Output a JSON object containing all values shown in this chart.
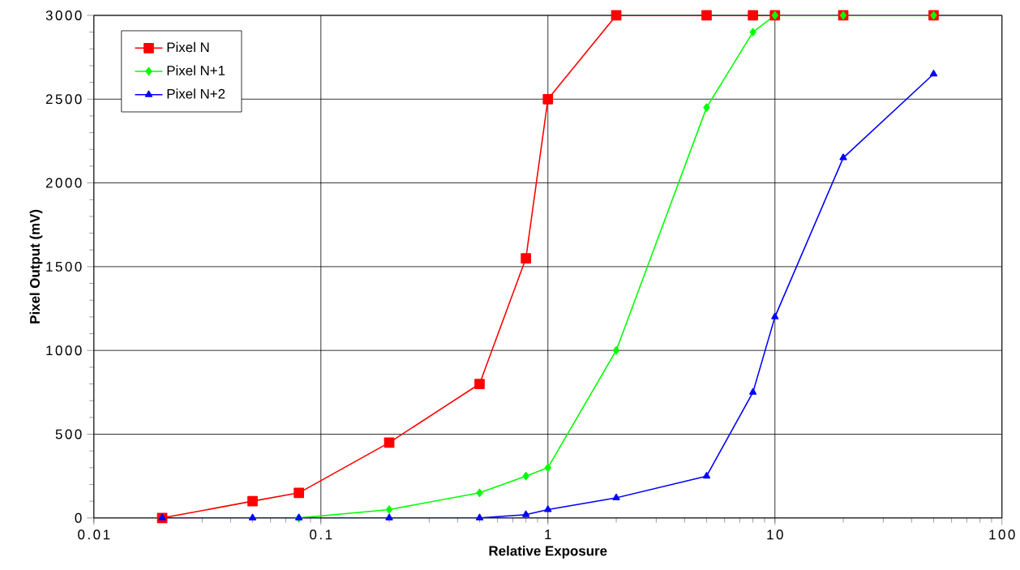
{
  "chart_data": {
    "type": "line",
    "xlabel": "Relative Exposure",
    "ylabel": "Pixel Output (mV)",
    "log": "x",
    "grid": true,
    "legend": "top left",
    "line_style": "solid",
    "xlim": [
      0.01,
      100
    ],
    "xticks": [
      0.01,
      0.1,
      1,
      10,
      100
    ],
    "ylim": [
      0,
      3000
    ],
    "yticks": [
      0,
      500,
      1000,
      1500,
      2000,
      2500,
      3000
    ],
    "series": [
      {
        "name": "Pixel N",
        "color": "#ff0000",
        "marker": "square",
        "x": [
          0.02,
          0.05,
          0.08,
          0.2,
          0.5,
          0.8,
          1,
          2,
          5,
          8,
          10,
          20,
          50
        ],
        "values": [
          0,
          100,
          150,
          450,
          800,
          1550,
          2500,
          3000,
          3000,
          3000,
          3000,
          3000,
          3000
        ]
      },
      {
        "name": "Pixel N+1",
        "color": "#00ff00",
        "marker": "diamond",
        "x": [
          0.08,
          0.2,
          0.5,
          0.8,
          1,
          2,
          5,
          8,
          10,
          20,
          50
        ],
        "values": [
          0,
          50,
          150,
          250,
          300,
          1000,
          2450,
          2900,
          3000,
          3000,
          3000
        ]
      },
      {
        "name": "Pixel N+2",
        "color": "#0000ff",
        "marker": "triangle",
        "x": [
          0.02,
          0.05,
          0.08,
          0.2,
          0.5,
          0.8,
          1,
          2,
          5,
          8,
          10,
          20,
          50
        ],
        "values": [
          0,
          0,
          0,
          0,
          0,
          20,
          50,
          120,
          250,
          750,
          1200,
          2150,
          2650
        ]
      }
    ]
  }
}
